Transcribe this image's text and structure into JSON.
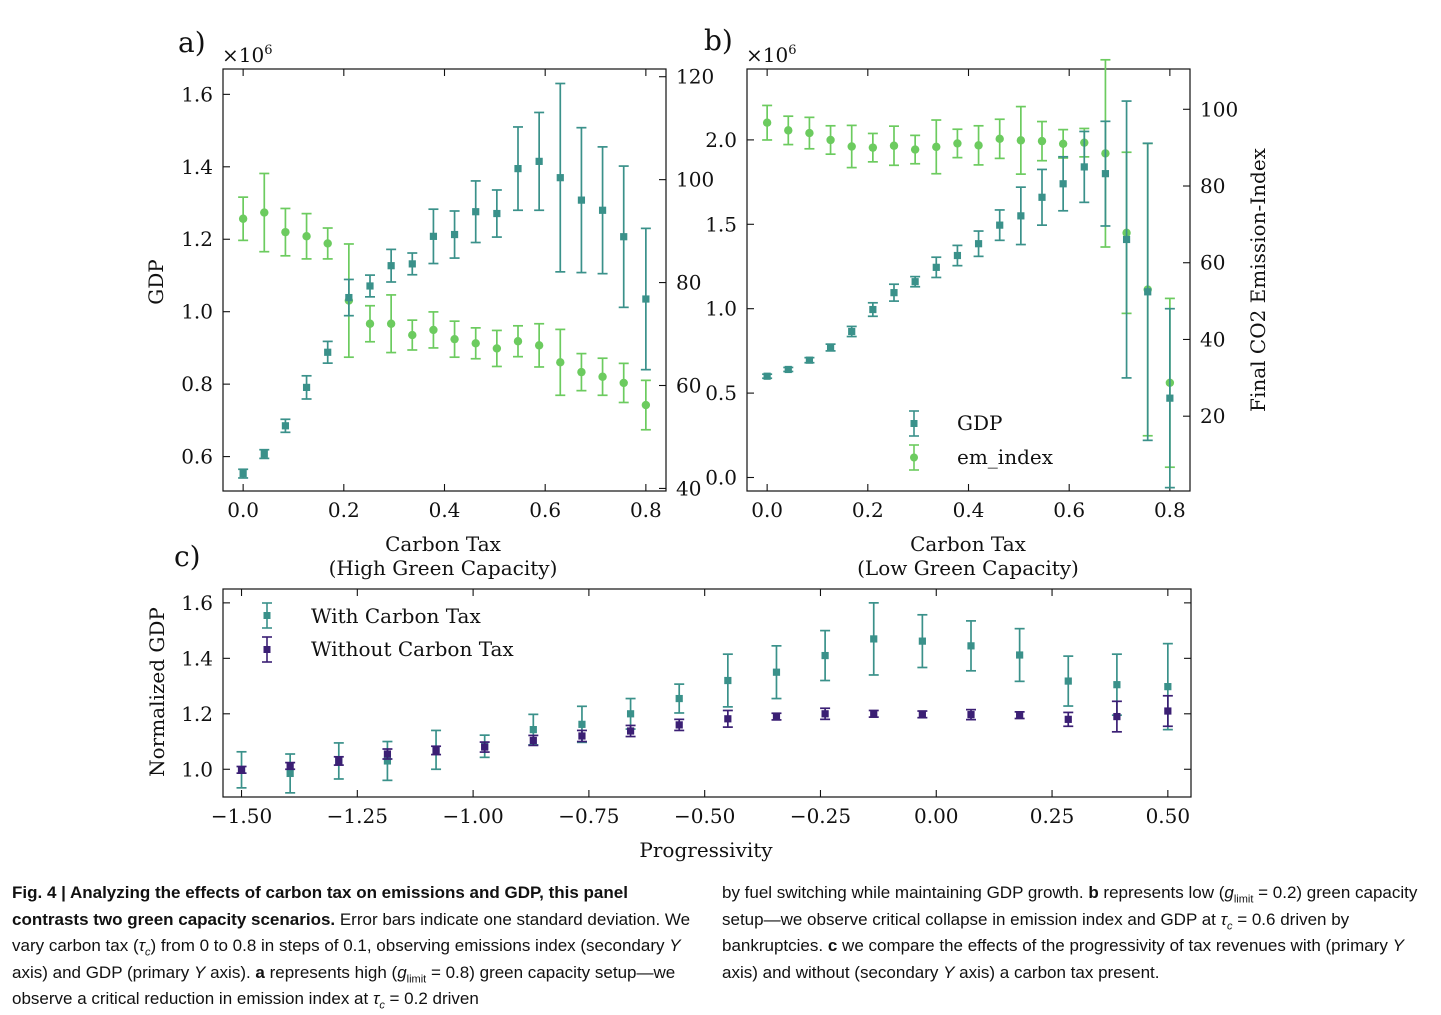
{
  "colors": {
    "teal": "#3a918a",
    "green": "#6ccb5f",
    "purple": "#3b1f74"
  },
  "chart_data": [
    {
      "panel_label": "a)",
      "type": "scatter",
      "xlabel": "Carbon Tax",
      "xlabel2": "(High Green Capacity)",
      "ylabel": "GDP",
      "y_multiplier": "×10",
      "y_exponent": "6",
      "xlim": [
        -0.04,
        0.84
      ],
      "ylim": [
        0.505,
        1.67
      ],
      "y2lim": [
        39.5,
        121.5
      ],
      "xticks": [
        "0.0",
        "0.2",
        "0.4",
        "0.6",
        "0.8"
      ],
      "yticks": [
        "0.6",
        "0.8",
        "1.0",
        "1.2",
        "1.4",
        "1.6"
      ],
      "y2ticks": [
        "40",
        "60",
        "80",
        "100",
        "120"
      ],
      "x": [
        0.0,
        0.042,
        0.084,
        0.126,
        0.168,
        0.21,
        0.252,
        0.294,
        0.336,
        0.378,
        0.42,
        0.462,
        0.504,
        0.546,
        0.588,
        0.63,
        0.672,
        0.714,
        0.756,
        0.8
      ],
      "series": [
        {
          "name": "GDP",
          "axis": "primary",
          "marker": "square",
          "values": [
            0.553,
            0.607,
            0.685,
            0.791,
            0.888,
            1.039,
            1.071,
            1.127,
            1.132,
            1.208,
            1.213,
            1.276,
            1.271,
            1.395,
            1.415,
            1.37,
            1.308,
            1.28,
            1.207,
            1.035
          ],
          "errors": [
            0.012,
            0.012,
            0.018,
            0.032,
            0.03,
            0.05,
            0.03,
            0.045,
            0.03,
            0.075,
            0.065,
            0.085,
            0.065,
            0.115,
            0.135,
            0.26,
            0.2,
            0.175,
            0.195,
            0.195
          ]
        },
        {
          "name": "em_index",
          "axis": "secondary",
          "marker": "circle",
          "values": [
            92.4,
            93.6,
            89.8,
            89.0,
            87.6,
            76.5,
            72.0,
            72.0,
            69.8,
            70.8,
            69.0,
            68.2,
            67.2,
            68.6,
            67.8,
            64.5,
            62.6,
            61.7,
            60.5,
            56.2
          ],
          "errors": [
            4.2,
            7.6,
            4.6,
            4.4,
            3.0,
            11.0,
            3.5,
            5.6,
            2.9,
            3.5,
            3.5,
            3.0,
            3.5,
            3.0,
            4.2,
            6.4,
            3.6,
            3.6,
            3.8,
            4.8
          ]
        }
      ]
    },
    {
      "panel_label": "b)",
      "type": "scatter",
      "xlabel": "Carbon Tax",
      "xlabel2": "(Low Green Capacity)",
      "y2label": "Final CO2 Emission-Index",
      "y_multiplier": "×10",
      "y_exponent": "6",
      "xlim": [
        -0.04,
        0.84
      ],
      "ylim": [
        -0.08,
        2.42
      ],
      "y2lim": [
        0.5,
        110.5
      ],
      "xticks": [
        "0.0",
        "0.2",
        "0.4",
        "0.6",
        "0.8"
      ],
      "yticks": [
        "0.0",
        "0.5",
        "1.0",
        "1.5",
        "2.0"
      ],
      "y2ticks": [
        "20",
        "40",
        "60",
        "80",
        "100"
      ],
      "legend": [
        "GDP",
        "em_index"
      ],
      "x": [
        0.0,
        0.042,
        0.084,
        0.126,
        0.168,
        0.21,
        0.252,
        0.294,
        0.336,
        0.378,
        0.42,
        0.462,
        0.504,
        0.546,
        0.588,
        0.63,
        0.672,
        0.714,
        0.756,
        0.8
      ],
      "series": [
        {
          "name": "GDP",
          "axis": "primary",
          "marker": "square",
          "values": [
            0.6,
            0.64,
            0.695,
            0.77,
            0.865,
            0.995,
            1.095,
            1.16,
            1.245,
            1.315,
            1.385,
            1.495,
            1.55,
            1.66,
            1.74,
            1.84,
            1.8,
            1.41,
            1.1,
            0.47
          ],
          "errors": [
            0.012,
            0.012,
            0.015,
            0.02,
            0.03,
            0.04,
            0.05,
            0.03,
            0.06,
            0.06,
            0.075,
            0.09,
            0.17,
            0.165,
            0.16,
            0.21,
            0.31,
            0.82,
            0.88,
            0.53
          ]
        },
        {
          "name": "em_index",
          "axis": "secondary",
          "marker": "circle",
          "values": [
            96.5,
            94.5,
            93.8,
            92.0,
            90.3,
            90.0,
            90.5,
            89.5,
            90.2,
            91.1,
            90.6,
            92.3,
            91.9,
            91.7,
            91.0,
            91.3,
            88.5,
            67.8,
            53.0,
            28.7
          ],
          "errors": [
            4.5,
            3.7,
            4.1,
            3.7,
            5.5,
            3.7,
            5.1,
            3.7,
            7.0,
            3.7,
            5.1,
            5.1,
            8.8,
            5.1,
            3.7,
            3.7,
            24.4,
            21.0,
            38.1,
            22.0
          ]
        }
      ]
    },
    {
      "panel_label": "c)",
      "type": "scatter",
      "xlabel": "Progressivity",
      "ylabel": "Normalized GDP",
      "xlim": [
        -1.54,
        0.55
      ],
      "ylim": [
        0.9,
        1.65
      ],
      "xticks": [
        "−1.50",
        "−1.25",
        "−1.00",
        "−0.75",
        "−0.50",
        "−0.25",
        "0.00",
        "0.25",
        "0.50"
      ],
      "xtick_values": [
        -1.5,
        -1.25,
        -1.0,
        -0.75,
        -0.5,
        -0.25,
        0.0,
        0.25,
        0.5
      ],
      "yticks": [
        "1.0",
        "1.2",
        "1.4",
        "1.6"
      ],
      "legend": [
        "With Carbon Tax",
        "Without Carbon Tax"
      ],
      "x": [
        -1.5,
        -1.395,
        -1.29,
        -1.185,
        -1.08,
        -0.975,
        -0.87,
        -0.765,
        -0.66,
        -0.555,
        -0.45,
        -0.345,
        -0.24,
        -0.135,
        -0.03,
        0.075,
        0.18,
        0.285,
        0.39,
        0.5
      ],
      "series": [
        {
          "name": "With Carbon Tax",
          "marker": "square",
          "values": [
            0.998,
            0.985,
            1.03,
            1.03,
            1.07,
            1.083,
            1.143,
            1.162,
            1.2,
            1.255,
            1.32,
            1.35,
            1.41,
            1.47,
            1.462,
            1.445,
            1.412,
            1.318,
            1.305,
            1.298
          ],
          "errors": [
            0.065,
            0.07,
            0.065,
            0.07,
            0.07,
            0.04,
            0.055,
            0.065,
            0.055,
            0.052,
            0.095,
            0.095,
            0.09,
            0.13,
            0.095,
            0.09,
            0.095,
            0.09,
            0.11,
            0.155
          ]
        },
        {
          "name": "Without Carbon Tax",
          "marker": "square",
          "values": [
            0.998,
            1.012,
            1.03,
            1.055,
            1.068,
            1.08,
            1.104,
            1.12,
            1.138,
            1.16,
            1.182,
            1.19,
            1.2,
            1.2,
            1.198,
            1.197,
            1.195,
            1.18,
            1.19,
            1.21
          ],
          "errors": [
            0.012,
            0.012,
            0.015,
            0.018,
            0.015,
            0.018,
            0.018,
            0.02,
            0.02,
            0.02,
            0.03,
            0.012,
            0.02,
            0.012,
            0.012,
            0.018,
            0.012,
            0.025,
            0.055,
            0.055
          ]
        }
      ]
    }
  ],
  "caption": {
    "fig_label": "Fig. 4 | ",
    "title": "Analyzing the effects of carbon tax on emissions and GDP, this panel contrasts two green capacity scenarios.",
    "p1": " Error bars indicate one standard deviation. We vary carbon tax (",
    "tau": "τ",
    "c": "c",
    "p2": ") from 0 to 0.8 in steps of 0.1, observing emissions index (secondary ",
    "Y": "Y",
    "p3": " axis) and GDP (primary ",
    "p4": " axis). ",
    "a": "a",
    "p5": " represents high (",
    "g": "g",
    "limit": "limit",
    "p6": " = 0.8) green capacity setup—we observe a critical reduction in emission index at ",
    "p7": " = 0.2 driven",
    "r1": "by fuel switching while maintaining GDP growth. ",
    "b": "b",
    "r2": " represents low (",
    "r3": " = 0.2) green capacity setup—we observe critical collapse in emission index and GDP at ",
    "r4": " = 0.6 driven by bankruptcies. ",
    "cc": "c",
    "r5": " we compare the effects of the progressivity of tax revenues with (primary ",
    "r6": " axis) and without (secondary ",
    "r7": " axis) a carbon tax present."
  }
}
